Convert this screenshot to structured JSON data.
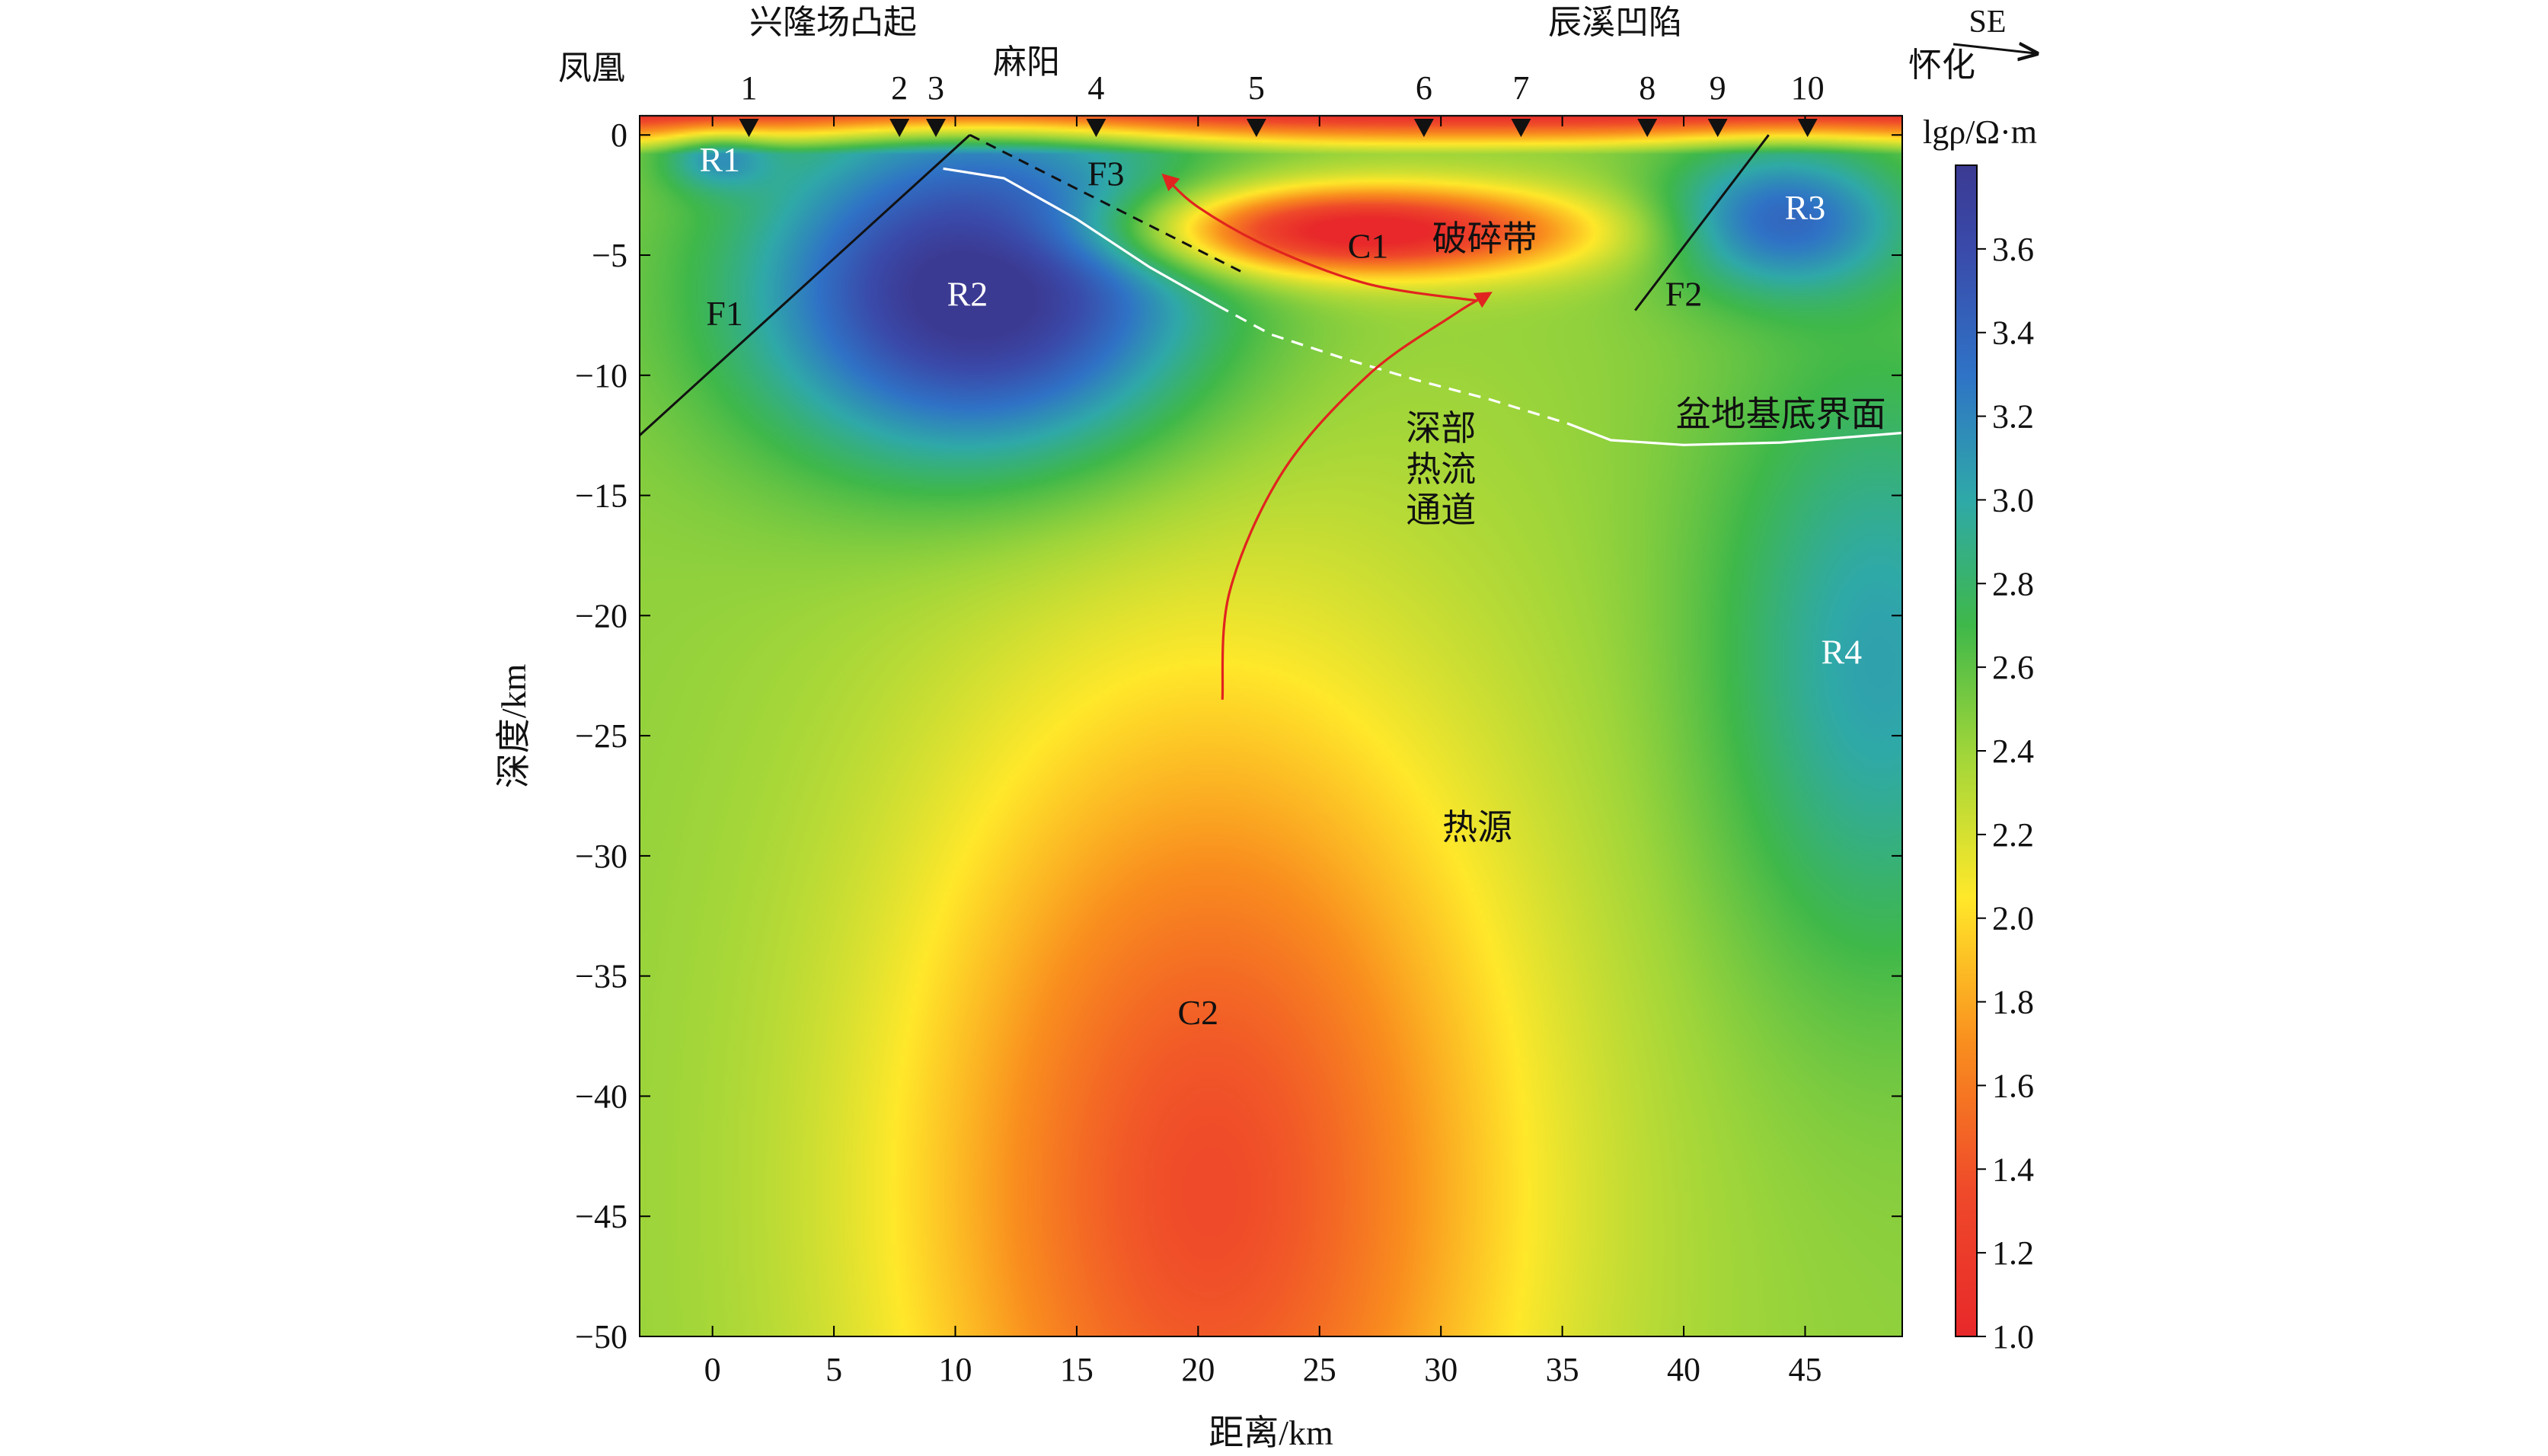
{
  "chart_data": {
    "type": "heatmap",
    "xlabel": "距离/km",
    "ylabel": "深度/km",
    "xlim": [
      -3,
      49
    ],
    "ylim": [
      -50,
      0.8
    ],
    "x_ticks": [
      0,
      5,
      10,
      15,
      20,
      25,
      30,
      35,
      40,
      45
    ],
    "y_ticks": [
      0,
      -5,
      -10,
      -15,
      -20,
      -25,
      -30,
      -35,
      -40,
      -45,
      -50
    ],
    "x_tick_labels": [
      "0",
      "5",
      "10",
      "15",
      "20",
      "25",
      "30",
      "35",
      "40",
      "45"
    ],
    "y_tick_labels": [
      "0",
      "−5",
      "−10",
      "−15",
      "−20",
      "−25",
      "−30",
      "−35",
      "−40",
      "−45",
      "−50"
    ],
    "colorbar": {
      "label": "lgρ/Ω·m",
      "range": [
        1.0,
        3.8
      ],
      "ticks": [
        1.0,
        1.2,
        1.4,
        1.6,
        1.8,
        2.0,
        2.2,
        2.4,
        2.6,
        2.8,
        3.0,
        3.2,
        3.4,
        3.6
      ],
      "tick_labels": [
        "1.0",
        "1.2",
        "1.4",
        "1.6",
        "1.8",
        "2.0",
        "2.2",
        "2.4",
        "2.6",
        "2.8",
        "3.0",
        "3.2",
        "3.4",
        "3.6"
      ],
      "stops": [
        {
          "value": 1.0,
          "color": "#e8282a"
        },
        {
          "value": 1.35,
          "color": "#ef4a2a"
        },
        {
          "value": 1.7,
          "color": "#f98e1e"
        },
        {
          "value": 2.05,
          "color": "#ffe82a"
        },
        {
          "value": 2.4,
          "color": "#9ed53a"
        },
        {
          "value": 2.7,
          "color": "#3fb84a"
        },
        {
          "value": 3.0,
          "color": "#2fa9a8"
        },
        {
          "value": 3.3,
          "color": "#2f73c6"
        },
        {
          "value": 3.6,
          "color": "#3a4aaa"
        },
        {
          "value": 3.8,
          "color": "#3b3a92"
        }
      ]
    },
    "stations": [
      {
        "label": "1",
        "x": 1.5
      },
      {
        "label": "2",
        "x": 7.7
      },
      {
        "label": "3",
        "x": 9.2
      },
      {
        "label": "4",
        "x": 15.8
      },
      {
        "label": "5",
        "x": 22.4
      },
      {
        "label": "6",
        "x": 29.3
      },
      {
        "label": "7",
        "x": 33.3
      },
      {
        "label": "8",
        "x": 38.5
      },
      {
        "label": "9",
        "x": 41.4
      },
      {
        "label": "10",
        "x": 45.1
      }
    ],
    "top_labels": {
      "fenghuang": "凤凰",
      "xinglongchang": "兴隆场凸起",
      "mayang": "麻阳",
      "chenxi": "辰溪凹陷",
      "huaihua": "怀化",
      "direction": "SE"
    },
    "anomalies": [
      {
        "label": "R1",
        "x": 0.2,
        "y": -1.0,
        "type": "resistive",
        "strength": 0.5,
        "rx": 2.2,
        "ry": 1.3
      },
      {
        "label": "R2",
        "x": 11,
        "y": -6.5,
        "type": "resistive",
        "strength": 1.5,
        "rx": 9,
        "ry": 7
      },
      {
        "label": "R3",
        "x": 44,
        "y": -3.5,
        "type": "resistive",
        "strength": 0.9,
        "rx": 5,
        "ry": 3
      },
      {
        "label": "R4",
        "x": 48,
        "y": -22,
        "type": "resistive",
        "strength": 0.6,
        "rx": 7,
        "ry": 13
      },
      {
        "label": "C1",
        "x": 26.5,
        "y": -4.0,
        "type": "conductive",
        "strength": 1.6,
        "rx": 9,
        "ry": 1.8
      },
      {
        "label": "C2",
        "x": 20.5,
        "y": -44,
        "type": "conductive",
        "strength": 1.1,
        "rx": 13,
        "ry": 22
      }
    ],
    "annotations": [
      {
        "text": "R1",
        "x": 0.3,
        "y": -1.0
      },
      {
        "text": "R2",
        "x": 10.5,
        "y": -6.6
      },
      {
        "text": "R3",
        "x": 45,
        "y": -3.0
      },
      {
        "text": "R4",
        "x": 46.5,
        "y": -21.5
      },
      {
        "text": "C1",
        "x": 27,
        "y": -4.6
      },
      {
        "text": "C2",
        "x": 20,
        "y": -36.5
      },
      {
        "text": "F1",
        "x": 0.5,
        "y": -7.4
      },
      {
        "text": "F2",
        "x": 40,
        "y": -6.6
      },
      {
        "text": "F3",
        "x": 16.2,
        "y": -1.6
      },
      {
        "text": "破碎带",
        "x": 31.8,
        "y": -4.3
      },
      {
        "text": "盆地基底界面",
        "x": 44,
        "y": -11.6
      },
      {
        "text": "深部",
        "x": 30,
        "y": -12.2
      },
      {
        "text": "热流",
        "x": 30,
        "y": -13.9
      },
      {
        "text": "通道",
        "x": 30,
        "y": -15.6
      },
      {
        "text": "热源",
        "x": 31.5,
        "y": -28.8
      }
    ],
    "faults": [
      {
        "label": "F1",
        "style": "solid",
        "points": [
          [
            -3,
            -12.5
          ],
          [
            10.6,
            0
          ]
        ]
      },
      {
        "label": "F2",
        "style": "solid",
        "points": [
          [
            38,
            -7.3
          ],
          [
            43.5,
            0
          ]
        ]
      },
      {
        "label": "F3",
        "style": "dashed",
        "points": [
          [
            10.6,
            0
          ],
          [
            22,
            -5.8
          ]
        ]
      }
    ],
    "basin_basement": {
      "label": "盆地基底界面",
      "solid_segments": [
        [
          [
            9.5,
            -1.4
          ],
          [
            12,
            -1.8
          ],
          [
            15,
            -3.5
          ],
          [
            18,
            -5.5
          ],
          [
            20.8,
            -7.1
          ]
        ],
        [
          [
            35.2,
            -12.0
          ],
          [
            37,
            -12.7
          ],
          [
            40,
            -12.9
          ],
          [
            44,
            -12.8
          ],
          [
            49,
            -12.4
          ]
        ]
      ],
      "dashed_segment": [
        [
          20.8,
          -7.1
        ],
        [
          23,
          -8.3
        ],
        [
          26,
          -9.3
        ],
        [
          29,
          -10.2
        ],
        [
          32,
          -11.0
        ],
        [
          35.2,
          -12.0
        ]
      ]
    },
    "heat_flow_paths": [
      {
        "from": "热源",
        "points": [
          [
            21,
            -23.5
          ],
          [
            21.3,
            -19
          ],
          [
            23.5,
            -14
          ],
          [
            27,
            -10
          ],
          [
            30.5,
            -7.5
          ],
          [
            32,
            -6.6
          ]
        ]
      },
      {
        "from": "破碎带",
        "points": [
          [
            31.5,
            -6.9
          ],
          [
            27,
            -6.2
          ],
          [
            23,
            -4.7
          ],
          [
            20,
            -3.0
          ],
          [
            18.6,
            -1.7
          ]
        ]
      }
    ]
  }
}
